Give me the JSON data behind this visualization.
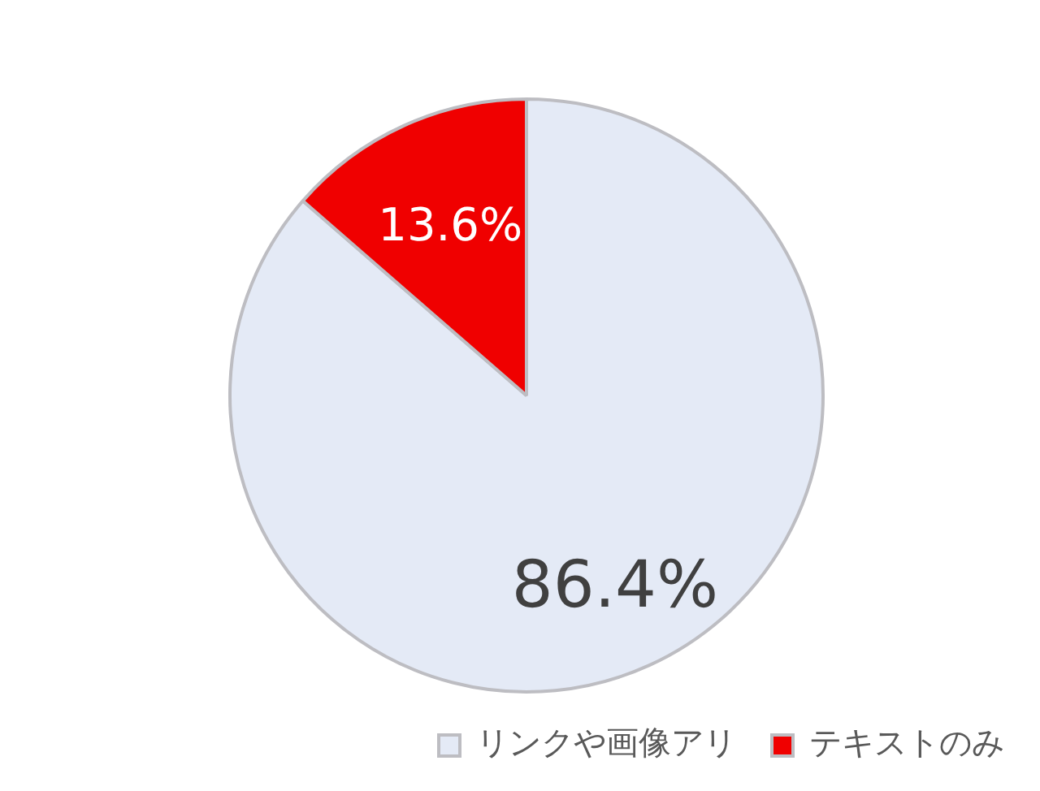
{
  "chart_data": {
    "type": "pie",
    "categories": [
      "リンクや画像アリ",
      "テキストのみ"
    ],
    "values": [
      86.4,
      13.6
    ],
    "colors": [
      "#e4eaf6",
      "#f00000"
    ],
    "value_labels": [
      "86.4%",
      "13.6%"
    ],
    "legend": "bottom right"
  }
}
